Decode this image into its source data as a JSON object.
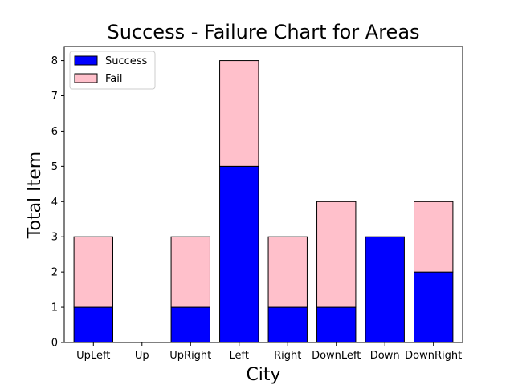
{
  "chart_data": {
    "type": "bar",
    "stacked": true,
    "title": "Success - Failure Chart for Areas",
    "xlabel": "City",
    "ylabel": "Total Item",
    "categories": [
      "UpLeft",
      "Up",
      "UpRight",
      "Left",
      "Right",
      "DownLeft",
      "Down",
      "DownRight"
    ],
    "series": [
      {
        "name": "Success",
        "values": [
          1,
          0,
          1,
          5,
          1,
          1,
          3,
          2
        ],
        "color": "#0000ff"
      },
      {
        "name": "Fail",
        "values": [
          2,
          0,
          2,
          3,
          2,
          3,
          0,
          2
        ],
        "color": "#ffc0cb"
      }
    ],
    "ylim": [
      0,
      8.4
    ],
    "yticks": [
      0,
      1,
      2,
      3,
      4,
      5,
      6,
      7,
      8
    ],
    "grid": false,
    "legend_position": "top-left"
  }
}
